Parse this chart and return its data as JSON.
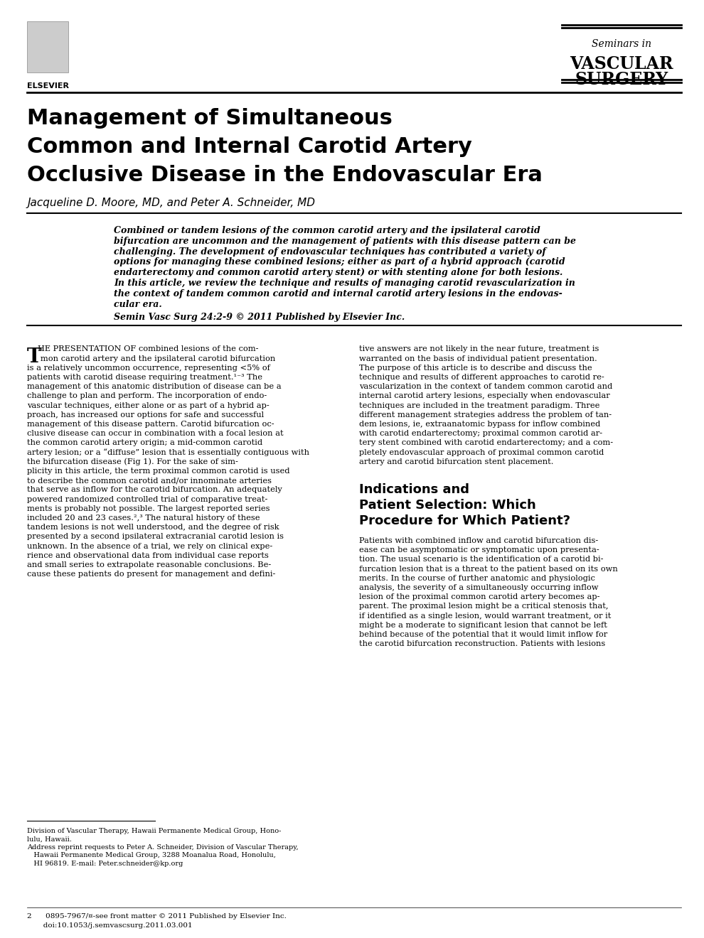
{
  "page_title_line1": "Management of Simultaneous",
  "page_title_line2": "Common and Internal Carotid Artery",
  "page_title_line3": "Occlusive Disease in the Endovascular Era",
  "authors": "Jacqueline D. Moore, MD, and Peter A. Schneider, MD",
  "journal_name_top": "Seminars in",
  "journal_name_mid": "VASCULAR",
  "journal_name_bot": "SURGERY",
  "elsevier_text": "ELSEVIER",
  "abstract_lines": [
    "Combined or tandem lesions of the common carotid artery and the ipsilateral carotid",
    "bifurcation are uncommon and the management of patients with this disease pattern can be",
    "challenging. The development of endovascular techniques has contributed a variety of",
    "options for managing these combined lesions; either as part of a hybrid approach (carotid",
    "endarterectomy and common carotid artery stent) or with stenting alone for both lesions.",
    "In this article, we review the technique and results of managing carotid revascularization in",
    "the context of tandem common carotid and internal carotid artery lesions in the endovas-",
    "cular era."
  ],
  "citation": "Semin Vasc Surg 24:2-9 © 2011 Published by Elsevier Inc.",
  "left_col_lines": [
    "HE PRESENTATION OF combined lesions of the com-",
    "   mon carotid artery and the ipsilateral carotid bifurcation",
    "is a relatively uncommon occurrence, representing <5% of",
    "patients with carotid disease requiring treatment.¹⁻³ The",
    "management of this anatomic distribution of disease can be a",
    "challenge to plan and perform. The incorporation of endo-",
    "vascular techniques, either alone or as part of a hybrid ap-",
    "proach, has increased our options for safe and successful",
    "management of this disease pattern. Carotid bifurcation oc-",
    "clusive disease can occur in combination with a focal lesion at",
    "the common carotid artery origin; a mid-common carotid",
    "artery lesion; or a “diffuse” lesion that is essentially contiguous with",
    "the bifurcation disease (Fig 1). For the sake of sim-",
    "plicity in this article, the term proximal common carotid is used",
    "to describe the common carotid and/or innominate arteries",
    "that serve as inflow for the carotid bifurcation. An adequately",
    "powered randomized controlled trial of comparative treat-",
    "ments is probably not possible. The largest reported series",
    "included 20 and 23 cases.²,³ The natural history of these",
    "tandem lesions is not well understood, and the degree of risk",
    "presented by a second ipsilateral extracranial carotid lesion is",
    "unknown. In the absence of a trial, we rely on clinical expe-",
    "rience and observational data from individual case reports",
    "and small series to extrapolate reasonable conclusions. Be-",
    "cause these patients do present for management and defini-"
  ],
  "right_col_lines": [
    "tive answers are not likely in the near future, treatment is",
    "warranted on the basis of individual patient presentation.",
    "The purpose of this article is to describe and discuss the",
    "technique and results of different approaches to carotid re-",
    "vascularization in the context of tandem common carotid and",
    "internal carotid artery lesions, especially when endovascular",
    "techniques are included in the treatment paradigm. Three",
    "different management strategies address the problem of tan-",
    "dem lesions, ie, extraanatomic bypass for inflow combined",
    "with carotid endarterectomy; proximal common carotid ar-",
    "tery stent combined with carotid endarterectomy; and a com-",
    "pletely endovascular approach of proximal common carotid",
    "artery and carotid bifurcation stent placement."
  ],
  "section_head_lines": [
    "Indications and",
    "Patient Selection: Which",
    "Procedure for Which Patient?"
  ],
  "section_body_lines": [
    "Patients with combined inflow and carotid bifurcation dis-",
    "ease can be asymptomatic or symptomatic upon presenta-",
    "tion. The usual scenario is the identification of a carotid bi-",
    "furcation lesion that is a threat to the patient based on its own",
    "merits. In the course of further anatomic and physiologic",
    "analysis, the severity of a simultaneously occurring inflow",
    "lesion of the proximal common carotid artery becomes ap-",
    "parent. The proximal lesion might be a critical stenosis that,",
    "if identified as a single lesion, would warrant treatment, or it",
    "might be a moderate to significant lesion that cannot be left",
    "behind because of the potential that it would limit inflow for",
    "the carotid bifurcation reconstruction. Patients with lesions"
  ],
  "footnote_lines": [
    "Division of Vascular Therapy, Hawaii Permanente Medical Group, Hono-",
    "lulu, Hawaii.",
    "Address reprint requests to Peter A. Schneider, Division of Vascular Therapy,",
    "   Hawaii Permanente Medical Group, 3288 Moanalua Road, Honolulu,",
    "   HI 96819. E-mail: Peter.schneider@kp.org"
  ],
  "footer_lines": [
    "2      0895-7967/¤-see front matter © 2011 Published by Elsevier Inc.",
    "       doi:10.1053/j.semvascsurg.2011.03.001"
  ],
  "bg_color": "#ffffff"
}
